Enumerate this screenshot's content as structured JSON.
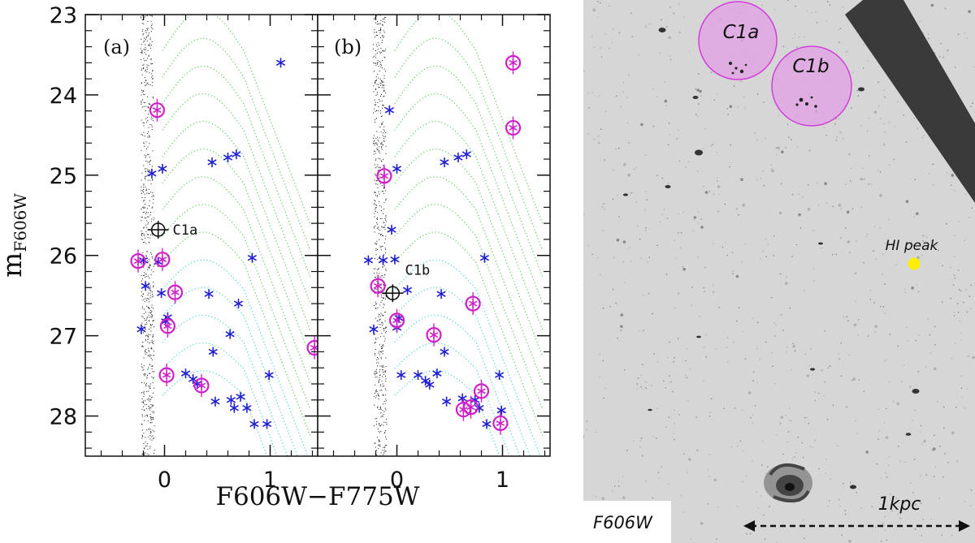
{
  "chart_data": [
    {
      "type": "scatter",
      "panel_label": "(a)",
      "xlabel": "F606W−F775W",
      "ylabel_main": "m",
      "ylabel_sub": "F606W",
      "xlim": [
        -0.75,
        1.45
      ],
      "ylim": [
        28.5,
        23.0
      ],
      "x_ticks": [
        0,
        1
      ],
      "y_ticks": [
        23,
        24,
        25,
        26,
        27,
        28
      ],
      "series": [
        {
          "marker": "blue-star",
          "x": [
            1.1,
            -0.12,
            -0.02,
            0.45,
            0.6,
            0.68,
            -0.2,
            -0.06,
            0.83,
            -0.18,
            -0.03,
            0.42,
            0.7,
            0.03,
            0.01,
            -0.22,
            0.46,
            0.62,
            0.99,
            0.2,
            0.27,
            0.31,
            0.48,
            0.63,
            0.72,
            0.66,
            0.78,
            0.85,
            0.97
          ],
          "y": [
            23.6,
            24.98,
            24.92,
            24.84,
            24.78,
            24.74,
            26.06,
            26.08,
            26.03,
            26.38,
            26.47,
            26.48,
            26.6,
            26.77,
            26.82,
            26.92,
            27.2,
            26.98,
            27.49,
            27.47,
            27.54,
            27.6,
            27.82,
            27.8,
            27.76,
            27.9,
            27.9,
            28.1,
            28.1
          ]
        },
        {
          "marker": "magenta-circle-star",
          "x": [
            -0.07,
            -0.25,
            -0.02,
            0.1,
            0.03,
            0.02,
            0.35,
            1.42
          ],
          "y": [
            24.19,
            26.07,
            26.05,
            26.46,
            26.88,
            27.49,
            27.62,
            27.15
          ]
        },
        {
          "marker": "black-circle-cross",
          "x": [
            -0.06
          ],
          "y": [
            25.68
          ]
        }
      ],
      "annotations": [
        {
          "text": "C1a",
          "x": 0.0,
          "y": 25.68
        }
      ]
    },
    {
      "type": "scatter",
      "panel_label": "(b)",
      "xlabel": "F606W−F775W",
      "xlim": [
        -0.75,
        1.45
      ],
      "ylim": [
        28.5,
        23.0
      ],
      "x_ticks": [
        0,
        1
      ],
      "y_ticks": [
        23,
        24,
        25,
        26,
        27,
        28
      ],
      "series": [
        {
          "marker": "blue-star",
          "x": [
            -0.07,
            0.0,
            0.45,
            0.58,
            0.66,
            -0.05,
            -0.27,
            -0.13,
            -0.02,
            0.83,
            0.1,
            0.42,
            -0.22,
            0.02,
            0.0,
            0.04,
            0.2,
            0.27,
            0.31,
            0.38,
            0.45,
            0.47,
            0.62,
            0.78,
            0.85,
            0.97,
            0.99,
            0.74
          ],
          "y": [
            24.19,
            24.92,
            24.84,
            24.78,
            24.74,
            25.68,
            26.06,
            26.06,
            26.05,
            26.03,
            26.43,
            26.48,
            26.92,
            26.78,
            26.9,
            27.49,
            27.49,
            27.56,
            27.61,
            27.47,
            27.2,
            27.82,
            27.78,
            27.9,
            28.1,
            27.49,
            27.93,
            27.8
          ]
        },
        {
          "marker": "magenta-circle-star",
          "x": [
            1.1,
            1.1,
            -0.12,
            -0.18,
            0.0,
            0.72,
            0.35,
            0.63,
            0.7,
            0.8,
            0.98
          ],
          "y": [
            23.6,
            24.41,
            25.01,
            26.38,
            26.81,
            26.6,
            26.99,
            27.92,
            27.89,
            27.69,
            28.09
          ]
        },
        {
          "marker": "black-circle-cross",
          "x": [
            -0.04
          ],
          "y": [
            26.47
          ]
        }
      ],
      "annotations": [
        {
          "text": "C1b",
          "x": 0.0,
          "y": 26.18
        }
      ]
    }
  ],
  "image_panel": {
    "filter_label": "F606W",
    "region_labels": [
      "C1a",
      "C1b"
    ],
    "peak_label": "HI peak",
    "scale_label": "1kpc",
    "colors": {
      "region": "#d060d8",
      "peak": "#ffee00",
      "chip_gap": "#3a3a3a"
    }
  },
  "colors": {
    "star": "#1f1fd0",
    "circle": "#d020c8",
    "isochrone_green": "#33cc33",
    "isochrone_cyan": "#22cccc"
  }
}
